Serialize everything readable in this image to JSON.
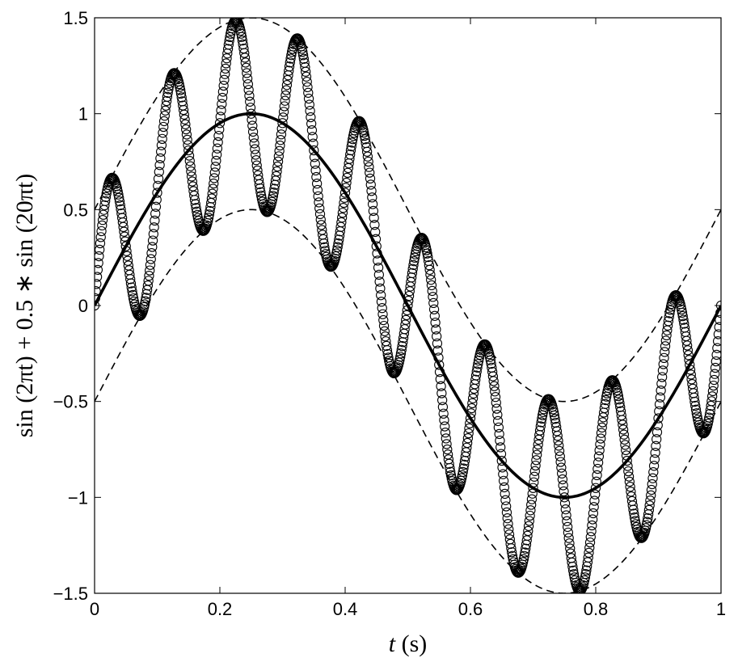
{
  "chart_data": {
    "type": "line",
    "title": "",
    "xlabel": "t (s)",
    "ylabel": "sin (2πt) + 0.5 ∗ sin (20πt)",
    "xlim": [
      0,
      1
    ],
    "ylim": [
      -1.5,
      1.5
    ],
    "x_ticks": [
      0,
      0.2,
      0.4,
      0.6,
      0.8,
      1
    ],
    "x_tick_labels": [
      "0",
      "0.2",
      "0.4",
      "0.6",
      "0.8",
      "1"
    ],
    "y_ticks": [
      -1.5,
      -1,
      -0.5,
      0,
      0.5,
      1,
      1.5
    ],
    "y_tick_labels": [
      "−1.5",
      "−1",
      "−0.5",
      "0",
      "0.5",
      "1",
      "1.5"
    ],
    "grid": false,
    "legend": "none",
    "series": [
      {
        "style": "open circle markers",
        "color": "#000000",
        "x": [
          0,
          0.01,
          0.02,
          0.03,
          0.04,
          0.05,
          0.06,
          0.07,
          0.08,
          0.09,
          0.1,
          0.11,
          0.12,
          0.13,
          0.14,
          0.15,
          0.16,
          0.17,
          0.18,
          0.19,
          0.2,
          0.21,
          0.22,
          0.23,
          0.24,
          0.25,
          0.26,
          0.27,
          0.28,
          0.29,
          0.3,
          0.31,
          0.32,
          0.33,
          0.34,
          0.35,
          0.36,
          0.37,
          0.38,
          0.39,
          0.4,
          0.41,
          0.42,
          0.43,
          0.44,
          0.45,
          0.46,
          0.47,
          0.48,
          0.49,
          0.5,
          0.51,
          0.52,
          0.53,
          0.54,
          0.55,
          0.56,
          0.57,
          0.58,
          0.59,
          0.6,
          0.61,
          0.62,
          0.63,
          0.64,
          0.65,
          0.66,
          0.67,
          0.68,
          0.69,
          0.7,
          0.71,
          0.72,
          0.73,
          0.74,
          0.75,
          0.76,
          0.77,
          0.78,
          0.79,
          0.8,
          0.81,
          0.82,
          0.83,
          0.84,
          0.85,
          0.86,
          0.87,
          0.88,
          0.89,
          0.9,
          0.91,
          0.92,
          0.93,
          0.94,
          0.95,
          0.96,
          0.97,
          0.98,
          0.99,
          1
        ],
        "y": [
          0,
          0.357,
          0.6,
          0.659,
          0.542,
          0.309,
          0.053,
          -0.125,
          -0.171,
          -0.077,
          0.588,
          0.915,
          1.142,
          1.2,
          1.076,
          0.809,
          0.474,
          0.202,
          0.086,
          0.18,
          0.951,
          1.284,
          1.506,
          1.543,
          1.44,
          1.0,
          0.697,
          0.514,
          0.528,
          0.734,
          0.951,
          1.245,
          1.398,
          1.37,
          1.165,
          0.809,
          0.542,
          0.394,
          0.393,
          0.556,
          0.588,
          0.791,
          0.958,
          0.988,
          0.853,
          0.588,
          0.161,
          0.014,
          0.019,
          0.184,
          0,
          0.296,
          0.498,
          0.553,
          0.426,
          0.184,
          -0.099,
          -0.306,
          -0.351,
          -0.245,
          -0.588,
          -0.304,
          -0.191,
          -0.251,
          -0.422,
          -0.609,
          -0.783,
          -1.015,
          -1.124,
          -1.065,
          -0.951,
          -0.642,
          -0.559,
          -0.71,
          -0.95,
          -1.207,
          -1.398,
          -1.538,
          -1.442,
          -1.185,
          -0.951,
          -0.569,
          -0.485,
          -0.568,
          -0.819,
          -1.09,
          -1.27,
          -1.29,
          -1.164,
          -0.89,
          -0.588,
          -0.182,
          0.068,
          0.096,
          0.006,
          -0.19,
          -0.38,
          -0.524,
          -0.569,
          -0.434,
          0
        ]
      },
      {
        "style": "thick solid line",
        "color": "#000000",
        "function": "sin(2πt)"
      },
      {
        "style": "dashed line",
        "color": "#000000",
        "function": "sin(2πt) + 0.5"
      },
      {
        "style": "dashed line",
        "color": "#000000",
        "function": "sin(2πt) − 0.5"
      }
    ]
  }
}
